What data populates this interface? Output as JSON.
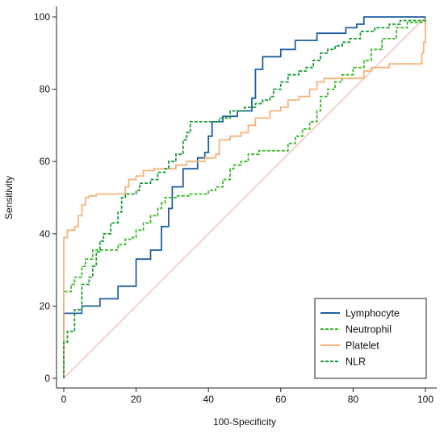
{
  "chart_data": {
    "type": "line",
    "title": "",
    "xlabel": "100-Specificity",
    "ylabel": "Sensitivity",
    "xlim": [
      0,
      100
    ],
    "ylim": [
      0,
      100
    ],
    "xticks": [
      0,
      20,
      40,
      60,
      80,
      100
    ],
    "yticks": [
      0,
      20,
      40,
      60,
      80,
      100
    ],
    "grid": false,
    "legend_position": "bottom-right",
    "reference_line": {
      "from": [
        0,
        0
      ],
      "to": [
        100,
        100
      ],
      "color": "#f0a8a0"
    },
    "series": [
      {
        "name": "Lymphocyte",
        "color": "#1f5fa0",
        "dash": "solid",
        "points": [
          [
            0,
            0
          ],
          [
            0,
            18
          ],
          [
            5,
            20
          ],
          [
            10,
            22
          ],
          [
            15,
            25.5
          ],
          [
            20,
            33
          ],
          [
            24,
            35.5
          ],
          [
            27,
            42
          ],
          [
            29,
            47
          ],
          [
            30,
            53
          ],
          [
            33,
            58
          ],
          [
            37,
            61
          ],
          [
            39,
            62.5
          ],
          [
            40,
            67
          ],
          [
            41,
            71
          ],
          [
            44,
            72.5
          ],
          [
            48,
            74
          ],
          [
            52,
            77.5
          ],
          [
            53,
            85.5
          ],
          [
            55,
            89
          ],
          [
            60,
            91
          ],
          [
            64,
            93.5
          ],
          [
            70,
            95.5
          ],
          [
            73,
            95.5
          ],
          [
            78,
            97
          ],
          [
            81,
            98
          ],
          [
            83,
            100
          ],
          [
            100,
            100
          ]
        ]
      },
      {
        "name": "Neutrophil",
        "color": "#3cb829",
        "dash": "dashed",
        "points": [
          [
            0,
            0
          ],
          [
            0,
            24
          ],
          [
            2,
            26
          ],
          [
            3,
            28
          ],
          [
            5,
            31
          ],
          [
            6,
            33
          ],
          [
            8,
            35.5
          ],
          [
            13,
            35.5
          ],
          [
            15,
            37
          ],
          [
            17,
            38.5
          ],
          [
            19,
            39
          ],
          [
            20,
            41
          ],
          [
            22,
            43
          ],
          [
            24,
            45
          ],
          [
            26,
            47
          ],
          [
            27,
            48.5
          ],
          [
            28,
            50
          ],
          [
            31,
            50.5
          ],
          [
            35,
            51
          ],
          [
            40,
            52
          ],
          [
            42,
            53
          ],
          [
            44,
            55
          ],
          [
            46,
            58
          ],
          [
            47,
            59
          ],
          [
            49,
            60
          ],
          [
            51,
            62
          ],
          [
            54,
            63
          ],
          [
            60,
            63
          ],
          [
            62,
            65
          ],
          [
            64,
            67
          ],
          [
            66,
            69
          ],
          [
            68,
            71
          ],
          [
            70,
            74
          ],
          [
            71,
            78
          ],
          [
            73,
            80
          ],
          [
            75,
            82
          ],
          [
            77,
            84
          ],
          [
            80,
            86
          ],
          [
            83,
            88
          ],
          [
            85,
            91
          ],
          [
            88,
            94
          ],
          [
            92,
            97
          ],
          [
            95,
            98.5
          ],
          [
            100,
            100
          ]
        ]
      },
      {
        "name": "Platelet",
        "color": "#f5b37a",
        "dash": "solid",
        "points": [
          [
            0,
            0
          ],
          [
            0,
            39
          ],
          [
            1,
            41
          ],
          [
            3,
            42
          ],
          [
            4,
            45
          ],
          [
            5,
            48
          ],
          [
            6,
            50
          ],
          [
            7,
            50.5
          ],
          [
            9,
            51
          ],
          [
            15,
            51
          ],
          [
            17,
            53
          ],
          [
            18,
            55
          ],
          [
            20,
            56
          ],
          [
            22,
            57.5
          ],
          [
            25,
            58
          ],
          [
            29,
            58
          ],
          [
            31,
            59
          ],
          [
            34,
            60
          ],
          [
            36,
            60
          ],
          [
            39,
            61
          ],
          [
            42,
            62
          ],
          [
            43,
            66
          ],
          [
            46,
            67
          ],
          [
            49,
            68
          ],
          [
            51,
            70
          ],
          [
            53,
            72
          ],
          [
            57,
            74
          ],
          [
            60,
            75
          ],
          [
            62,
            77
          ],
          [
            65,
            78
          ],
          [
            68,
            80
          ],
          [
            70,
            82
          ],
          [
            72,
            83
          ],
          [
            80,
            83
          ],
          [
            83,
            85
          ],
          [
            85,
            86
          ],
          [
            90,
            87
          ],
          [
            98,
            87
          ],
          [
            99,
            90
          ],
          [
            99.5,
            93
          ],
          [
            100,
            100
          ]
        ]
      },
      {
        "name": "NLR",
        "color": "#179c35",
        "dash": "dashed",
        "points": [
          [
            0,
            0
          ],
          [
            0,
            10
          ],
          [
            1,
            13
          ],
          [
            3,
            13.5
          ],
          [
            3,
            19
          ],
          [
            5,
            22
          ],
          [
            5,
            26
          ],
          [
            7,
            28
          ],
          [
            8,
            31
          ],
          [
            9,
            35
          ],
          [
            10,
            38
          ],
          [
            11,
            40
          ],
          [
            13,
            43
          ],
          [
            15,
            46
          ],
          [
            16,
            50
          ],
          [
            17,
            51
          ],
          [
            20,
            52
          ],
          [
            21,
            54
          ],
          [
            24,
            55
          ],
          [
            26,
            57
          ],
          [
            28,
            58
          ],
          [
            29,
            60
          ],
          [
            31,
            62
          ],
          [
            33,
            66
          ],
          [
            34,
            68
          ],
          [
            35,
            71
          ],
          [
            41,
            71
          ],
          [
            43,
            72
          ],
          [
            46,
            74
          ],
          [
            50,
            75
          ],
          [
            53,
            76
          ],
          [
            55,
            77
          ],
          [
            57,
            78
          ],
          [
            58,
            80
          ],
          [
            60,
            82
          ],
          [
            62,
            84
          ],
          [
            65,
            85
          ],
          [
            67,
            86
          ],
          [
            69,
            88
          ],
          [
            71,
            90
          ],
          [
            73,
            91
          ],
          [
            75,
            92
          ],
          [
            77,
            93
          ],
          [
            79,
            94
          ],
          [
            82,
            96
          ],
          [
            86,
            97
          ],
          [
            90,
            98
          ],
          [
            93,
            99
          ],
          [
            100,
            100
          ]
        ]
      }
    ]
  }
}
